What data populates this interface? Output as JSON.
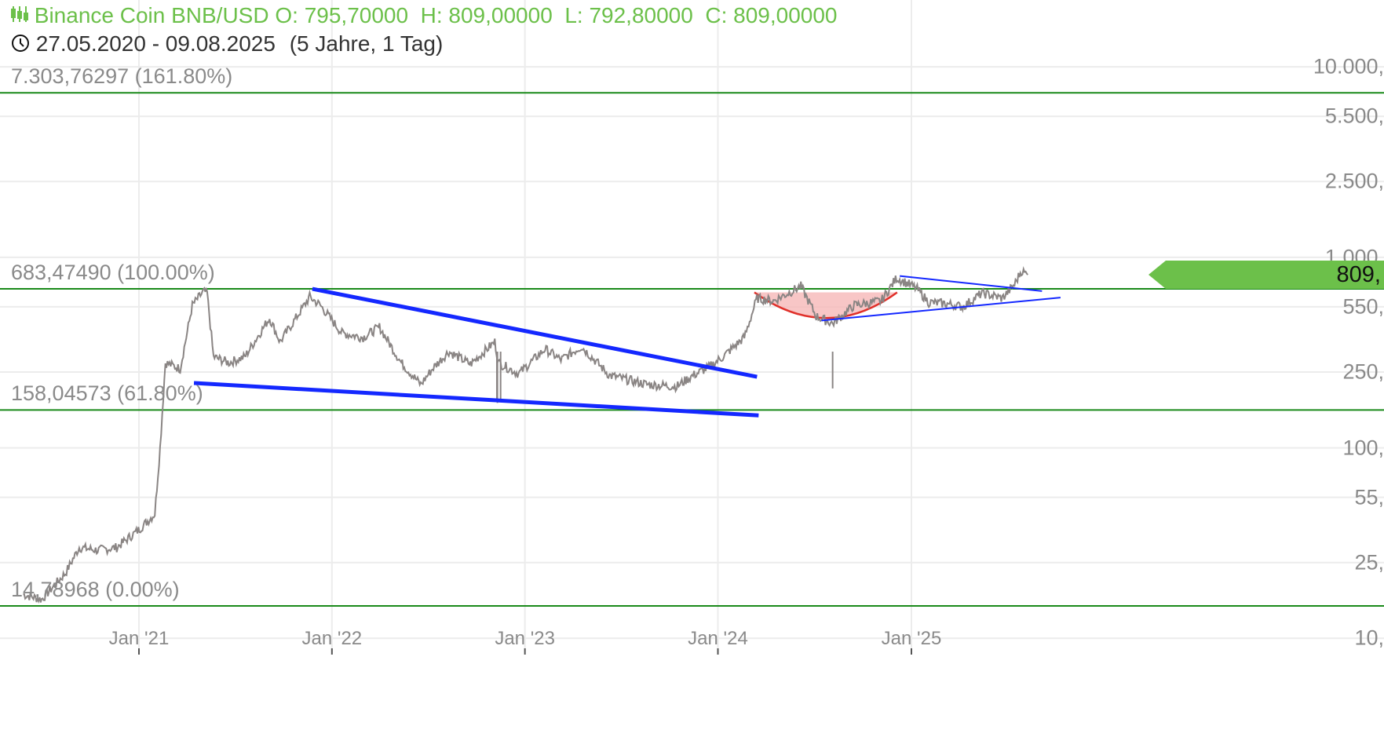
{
  "header": {
    "instrument": "Binance Coin BNB/USD",
    "ohlc": "O: 795,70000  H: 809,00000  L: 792,80000  C: 809,00000",
    "range": "27.05.2020 - 09.08.2025",
    "period": "(5 Jahre, 1 Tag)",
    "instrument_icon": "candlestick-icon",
    "range_icon": "clock-icon"
  },
  "current_price_label": "809,",
  "colors": {
    "accent": "#6cc04a",
    "fib": "#1a8a1a",
    "trend": "#1428ff",
    "arc": "#e0302a",
    "arc_fill": "#f6b8b8",
    "price": "#8a8584"
  },
  "chart_data": {
    "type": "line",
    "scale": "log",
    "ylim": [
      10,
      12000
    ],
    "xlim": [
      "2020-05-27",
      "2025-08-09"
    ],
    "yticks": [
      {
        "v": 10000,
        "label": "10.000,"
      },
      {
        "v": 5500,
        "label": "5.500,"
      },
      {
        "v": 2500,
        "label": "2.500,"
      },
      {
        "v": 1000,
        "label": "1.000,"
      },
      {
        "v": 550,
        "label": "550,"
      },
      {
        "v": 250,
        "label": "250,"
      },
      {
        "v": 100,
        "label": "100,"
      },
      {
        "v": 55,
        "label": "55,"
      },
      {
        "v": 25,
        "label": "25,"
      },
      {
        "v": 10,
        "label": "10,"
      }
    ],
    "xticks": [
      {
        "d": "2021-01-01",
        "label": "Jan '21"
      },
      {
        "d": "2022-01-01",
        "label": "Jan '22"
      },
      {
        "d": "2023-01-01",
        "label": "Jan '23"
      },
      {
        "d": "2024-01-01",
        "label": "Jan '24"
      },
      {
        "d": "2025-01-01",
        "label": "Jan '25"
      }
    ],
    "fib_levels": [
      {
        "v": 7303.76297,
        "label": "7.303,76297 (161.80%)"
      },
      {
        "v": 683.4749,
        "label": "683,47490 (100.00%)"
      },
      {
        "v": 158.04573,
        "label": "158,04573 (61.80%)"
      },
      {
        "v": 14.78968,
        "label": "14,78968 (0.00%)"
      }
    ],
    "series": [
      {
        "name": "BNB/USD",
        "points": [
          [
            "2020-05-27",
            17
          ],
          [
            "2020-07-01",
            16
          ],
          [
            "2020-08-15",
            22
          ],
          [
            "2020-09-10",
            30
          ],
          [
            "2020-10-15",
            29
          ],
          [
            "2020-11-20",
            30
          ],
          [
            "2020-12-31",
            37
          ],
          [
            "2021-01-31",
            45
          ],
          [
            "2021-02-10",
            100
          ],
          [
            "2021-02-20",
            280
          ],
          [
            "2021-03-20",
            260
          ],
          [
            "2021-04-12",
            560
          ],
          [
            "2021-05-03",
            660
          ],
          [
            "2021-05-10",
            650
          ],
          [
            "2021-05-22",
            300
          ],
          [
            "2021-06-20",
            280
          ],
          [
            "2021-07-20",
            300
          ],
          [
            "2021-09-05",
            480
          ],
          [
            "2021-09-25",
            360
          ],
          [
            "2021-10-25",
            480
          ],
          [
            "2021-11-20",
            620
          ],
          [
            "2021-12-10",
            560
          ],
          [
            "2022-01-20",
            400
          ],
          [
            "2022-03-01",
            380
          ],
          [
            "2022-04-01",
            430
          ],
          [
            "2022-05-12",
            280
          ],
          [
            "2022-06-18",
            215
          ],
          [
            "2022-07-10",
            260
          ],
          [
            "2022-08-10",
            320
          ],
          [
            "2022-09-20",
            275
          ],
          [
            "2022-11-05",
            360
          ],
          [
            "2022-11-12",
            280
          ],
          [
            "2022-12-20",
            245
          ],
          [
            "2023-02-08",
            330
          ],
          [
            "2023-03-10",
            290
          ],
          [
            "2023-04-18",
            340
          ],
          [
            "2023-06-10",
            240
          ],
          [
            "2023-08-20",
            215
          ],
          [
            "2023-10-15",
            210
          ],
          [
            "2023-11-15",
            240
          ],
          [
            "2023-12-15",
            265
          ],
          [
            "2024-01-10",
            300
          ],
          [
            "2024-02-20",
            380
          ],
          [
            "2024-03-15",
            610
          ],
          [
            "2024-04-15",
            590
          ],
          [
            "2024-06-06",
            705
          ],
          [
            "2024-07-05",
            490
          ],
          [
            "2024-08-05",
            450
          ],
          [
            "2024-09-15",
            560
          ],
          [
            "2024-11-05",
            590
          ],
          [
            "2024-12-04",
            780
          ],
          [
            "2025-01-10",
            690
          ],
          [
            "2025-02-03",
            580
          ],
          [
            "2025-03-10",
            570
          ],
          [
            "2025-04-08",
            550
          ],
          [
            "2025-05-15",
            650
          ],
          [
            "2025-06-22",
            610
          ],
          [
            "2025-07-15",
            720
          ],
          [
            "2025-07-28",
            850
          ],
          [
            "2025-08-09",
            809
          ]
        ]
      }
    ],
    "trendlines": [
      {
        "from": [
          "2021-11-25",
          683
        ],
        "to": [
          "2024-03-15",
          236
        ],
        "weight": "thick"
      },
      {
        "from": [
          "2021-04-15",
          219
        ],
        "to": [
          "2024-03-18",
          148
        ],
        "weight": "thick"
      },
      {
        "from": [
          "2024-12-10",
          798
        ],
        "to": [
          "2025-09-05",
          665
        ],
        "weight": "thin"
      },
      {
        "from": [
          "2024-07-15",
          466
        ],
        "to": [
          "2025-10-10",
          615
        ],
        "weight": "thin"
      }
    ],
    "arc": {
      "from": [
        "2024-03-10",
        655
      ],
      "mid": [
        "2024-07-25",
        480
      ],
      "to": [
        "2024-12-05",
        655
      ]
    }
  }
}
